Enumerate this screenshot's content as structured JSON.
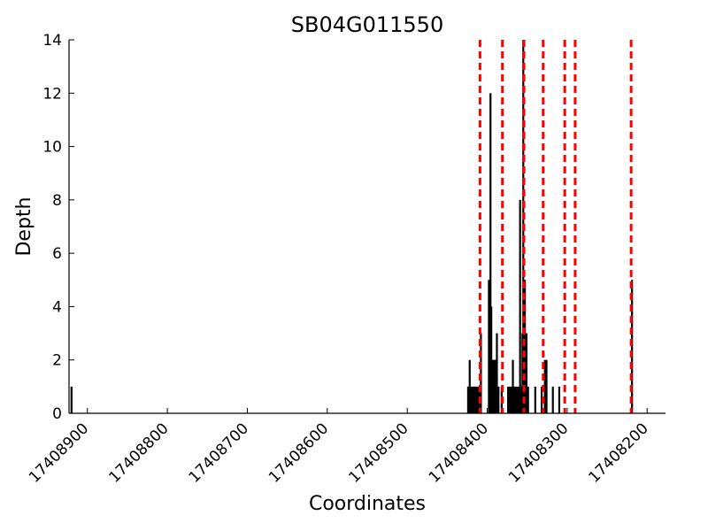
{
  "chart_data": {
    "type": "bar",
    "title": "SB04G011550",
    "xlabel": "Coordinates",
    "ylabel": "Depth",
    "x_axis_reversed": true,
    "xlim": [
      17408923,
      17408177
    ],
    "ylim": [
      0,
      14
    ],
    "x_ticks": [
      17408900,
      17408800,
      17408700,
      17408600,
      17408500,
      17408400,
      17408300,
      17408200
    ],
    "x_tick_labels": [
      "17408900",
      "17408800",
      "17408700",
      "17408600",
      "17408500",
      "17408400",
      "17408300",
      "17408200"
    ],
    "y_ticks": [
      0,
      2,
      4,
      6,
      8,
      10,
      12,
      14
    ],
    "y_tick_labels": [
      "0",
      "2",
      "4",
      "6",
      "8",
      "10",
      "12",
      "14"
    ],
    "bar_color": "#000000",
    "marker_color": "#ff0000",
    "depth": {
      "x": [
        17408920,
        17408424,
        17408422,
        17408420,
        17408418,
        17408416,
        17408414,
        17408412,
        17408410,
        17408408,
        17408398,
        17408397,
        17408396,
        17408395,
        17408394,
        17408393,
        17408392,
        17408391,
        17408390,
        17408389,
        17408388,
        17408386,
        17408382,
        17408374,
        17408372,
        17408370,
        17408368,
        17408366,
        17408364,
        17408362,
        17408360,
        17408359,
        17408357,
        17408356,
        17408355,
        17408354,
        17408353,
        17408351,
        17408349,
        17408340,
        17408332,
        17408326,
        17408326,
        17408328,
        17408318,
        17408310,
        17408219
      ],
      "values": [
        1,
        1,
        2,
        1,
        1,
        1,
        1,
        1,
        1,
        3,
        5,
        2,
        12,
        4,
        2,
        2,
        2,
        2,
        2,
        1,
        3,
        1,
        1,
        1,
        1,
        1,
        2,
        1,
        1,
        1,
        1,
        8,
        1,
        3,
        14,
        2,
        5,
        3,
        1,
        1,
        1,
        1,
        2,
        2,
        1,
        1,
        5
      ]
    },
    "markers": {
      "x": [
        17408409,
        17408381,
        17408354,
        17408330,
        17408303,
        17408290,
        17408220
      ]
    }
  }
}
